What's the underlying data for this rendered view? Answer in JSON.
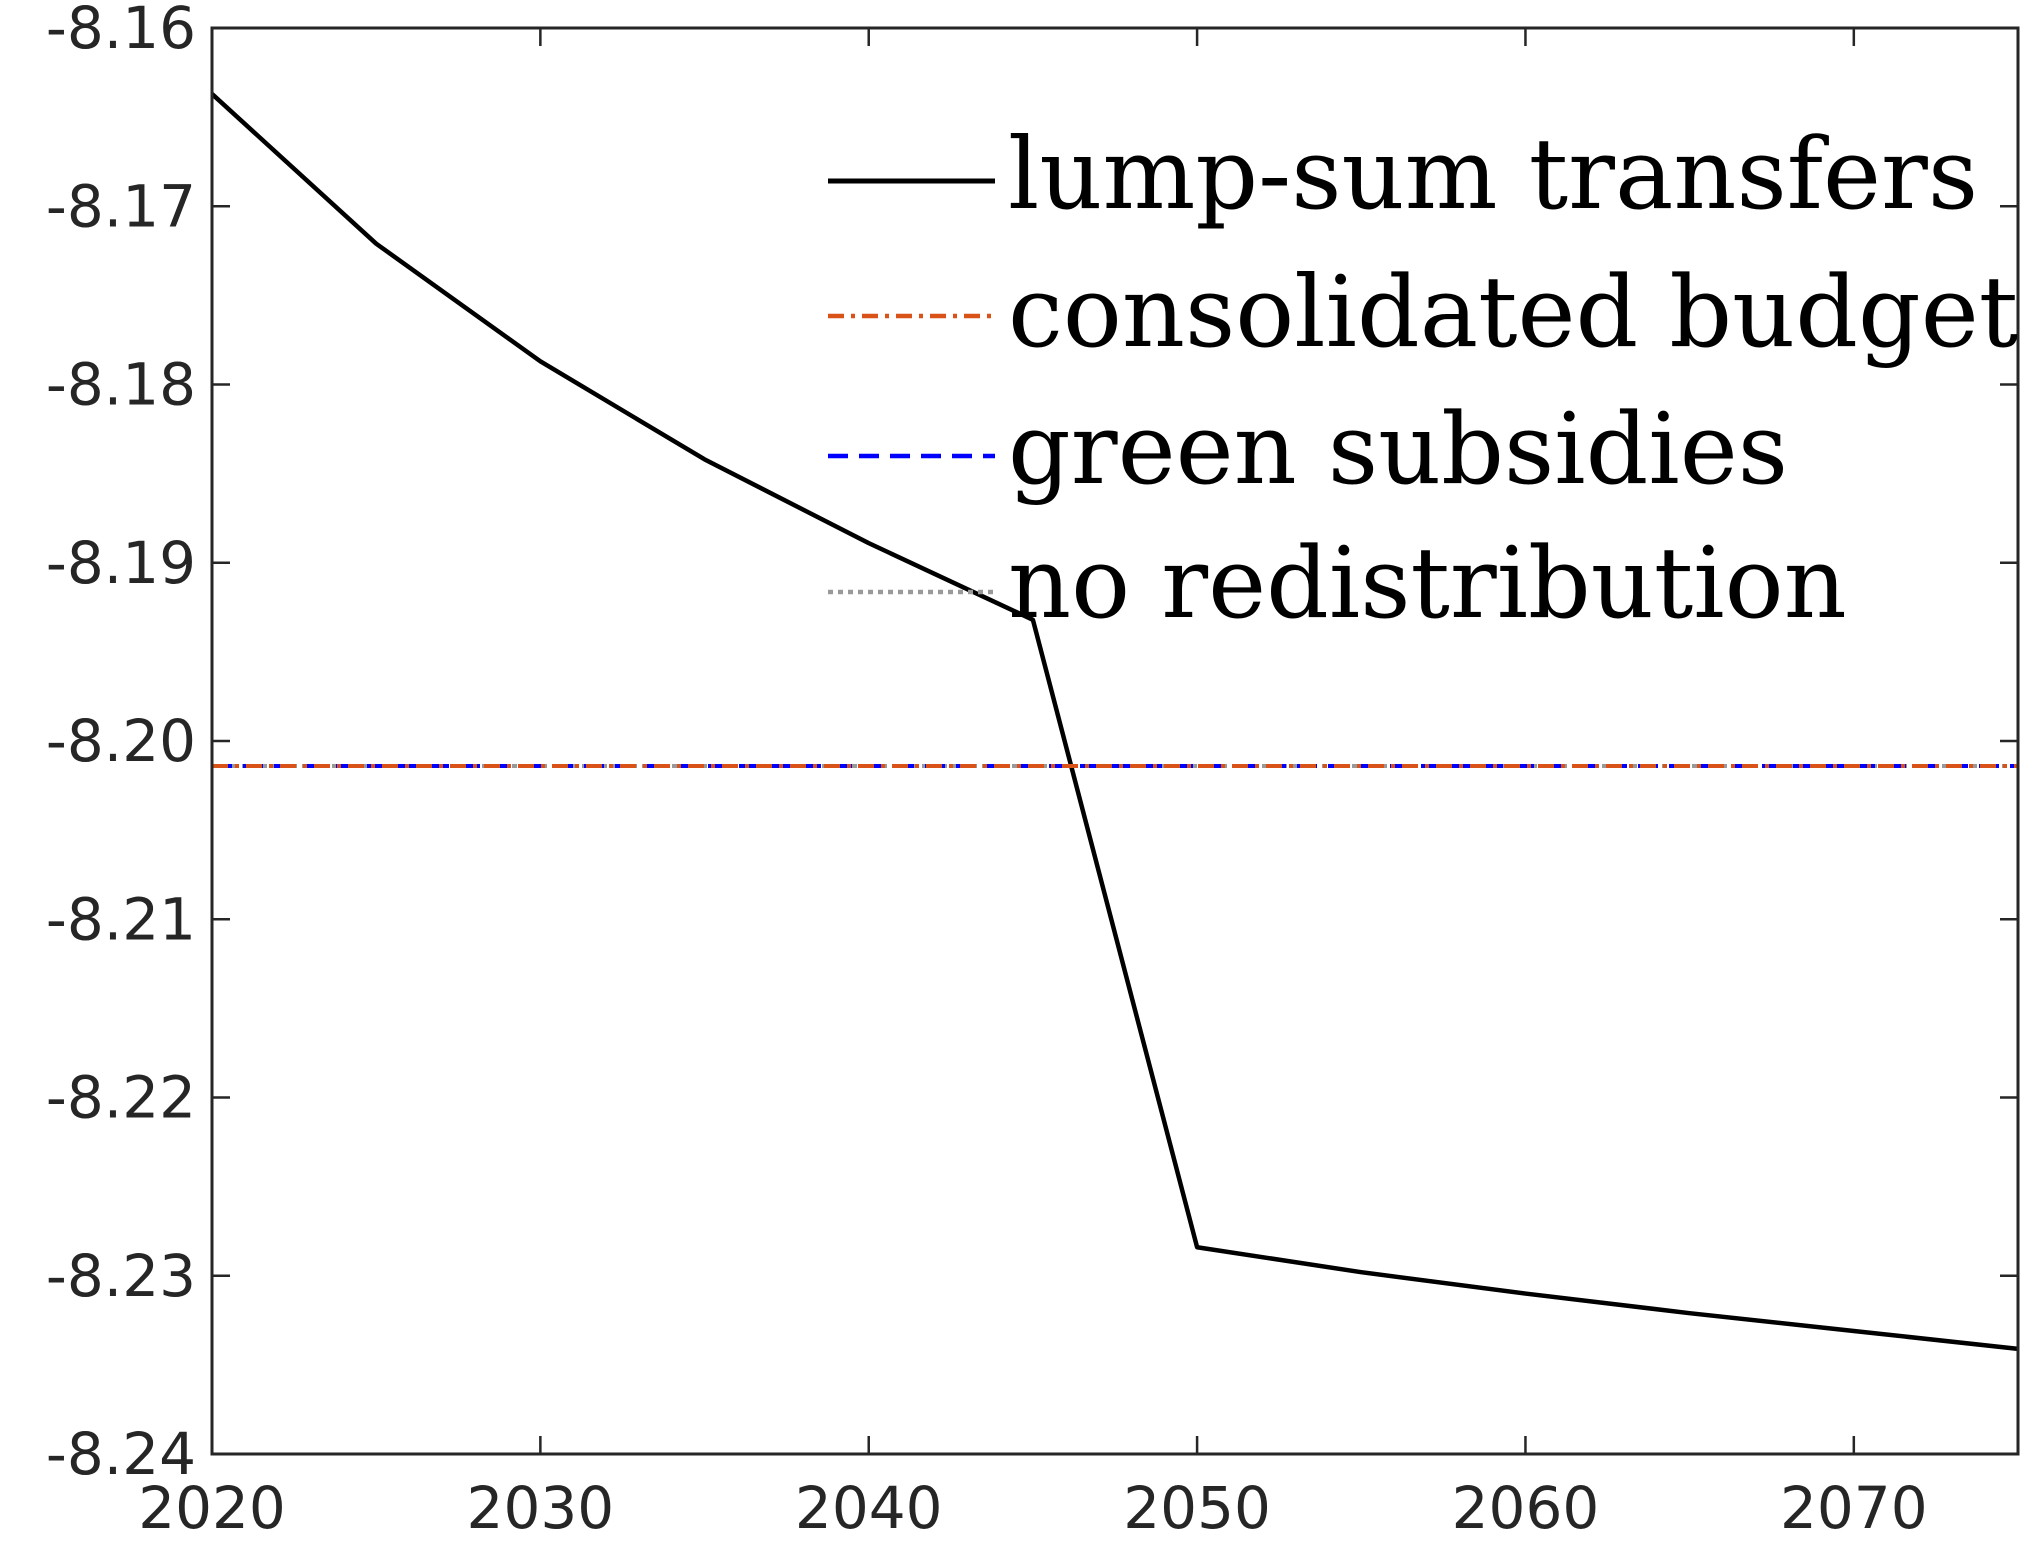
{
  "chart_data": {
    "type": "line",
    "title": "",
    "xlabel": "",
    "ylabel": "",
    "xlim": [
      2020,
      2075
    ],
    "ylim": [
      -8.24,
      -8.16
    ],
    "x_ticks": [
      "2020",
      "2030",
      "2040",
      "2050",
      "2060",
      "2070"
    ],
    "y_ticks": [
      "-8.16",
      "-8.17",
      "-8.18",
      "-8.19",
      "-8.20",
      "-8.21",
      "-8.22",
      "-8.23",
      "-8.24"
    ],
    "grid": false,
    "legend_position": "top-right",
    "series": [
      {
        "name": "lump-sum transfers",
        "color": "#000000",
        "style": "solid",
        "x": [
          2020,
          2025,
          2030,
          2035,
          2040,
          2045,
          2050,
          2055,
          2060,
          2065,
          2070,
          2075
        ],
        "values": [
          -8.1637,
          -8.1721,
          -8.1787,
          -8.1842,
          -8.1889,
          -8.1932,
          -8.2284,
          -8.2298,
          -8.231,
          -8.2321,
          -8.2331,
          -8.2341
        ]
      },
      {
        "name": "consolidated budget",
        "color": "#d95319",
        "style": "dashdot",
        "x": [
          2020,
          2075
        ],
        "values": [
          -8.2014,
          -8.2014
        ]
      },
      {
        "name": "green subsidies",
        "color": "#0000ff",
        "style": "dashed",
        "x": [
          2020,
          2075
        ],
        "values": [
          -8.2014,
          -8.2014
        ]
      },
      {
        "name": "no redistribution",
        "color": "#999999",
        "style": "dotted",
        "x": [
          2020,
          2075
        ],
        "values": [
          -8.2014,
          -8.2014
        ]
      }
    ]
  }
}
